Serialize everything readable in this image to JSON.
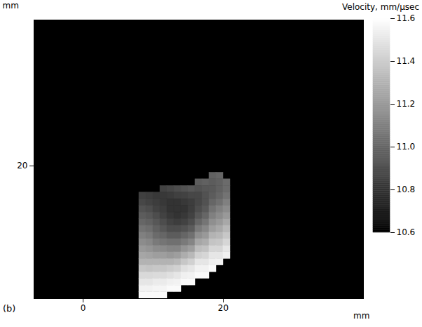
{
  "chart_data": {
    "type": "heatmap",
    "panel_label": "(b)",
    "xlabel": "mm",
    "ylabel": "mm",
    "xlim": [
      -7,
      40
    ],
    "xticks": [
      0,
      20
    ],
    "ylim": [
      40,
      -2
    ],
    "yticks": [
      20
    ],
    "x_edges": [
      8,
      9,
      10,
      11,
      12,
      13,
      14,
      15,
      16,
      17,
      18,
      19,
      20,
      21
    ],
    "y_edges": [
      21,
      22,
      23,
      24,
      25,
      26,
      27,
      28,
      29,
      30,
      31,
      32,
      33,
      34,
      35,
      36,
      37,
      38,
      39,
      40
    ],
    "values": [
      [
        null,
        null,
        null,
        null,
        null,
        null,
        null,
        null,
        null,
        null,
        10.98,
        11.0,
        null
      ],
      [
        null,
        null,
        null,
        null,
        null,
        null,
        null,
        null,
        10.96,
        10.98,
        10.96,
        10.98,
        11.02
      ],
      [
        null,
        null,
        null,
        10.86,
        10.88,
        10.9,
        10.92,
        10.94,
        10.92,
        10.94,
        10.95,
        10.98,
        11.02
      ],
      [
        10.85,
        10.84,
        10.82,
        10.82,
        10.83,
        10.85,
        10.86,
        10.88,
        10.88,
        10.92,
        10.96,
        11.0,
        11.05
      ],
      [
        10.88,
        10.86,
        10.84,
        10.82,
        10.8,
        10.8,
        10.82,
        10.84,
        10.88,
        10.92,
        11.0,
        11.04,
        11.1
      ],
      [
        10.92,
        10.9,
        10.86,
        10.84,
        10.8,
        10.8,
        10.8,
        10.84,
        10.9,
        10.95,
        11.05,
        11.1,
        11.15
      ],
      [
        10.96,
        10.94,
        10.9,
        10.86,
        10.82,
        10.8,
        10.82,
        10.86,
        10.94,
        11.0,
        11.1,
        11.15,
        11.2
      ],
      [
        11.0,
        10.98,
        10.94,
        10.9,
        10.86,
        10.84,
        10.86,
        10.9,
        11.0,
        11.06,
        11.16,
        11.2,
        11.26
      ],
      [
        11.05,
        11.03,
        10.98,
        10.94,
        10.9,
        10.9,
        10.92,
        10.96,
        11.08,
        11.13,
        11.22,
        11.26,
        11.32
      ],
      [
        11.1,
        11.08,
        11.02,
        11.0,
        10.96,
        10.96,
        11.0,
        11.04,
        11.16,
        11.2,
        11.3,
        11.32,
        11.38
      ],
      [
        11.15,
        11.13,
        11.08,
        11.06,
        11.04,
        11.04,
        11.08,
        11.12,
        11.25,
        11.28,
        11.37,
        11.38,
        11.44
      ],
      [
        11.2,
        11.18,
        11.15,
        11.14,
        11.12,
        11.12,
        11.18,
        11.22,
        11.34,
        11.36,
        11.44,
        11.44,
        11.5
      ],
      [
        11.25,
        11.24,
        11.22,
        11.22,
        11.2,
        11.22,
        11.28,
        11.32,
        11.42,
        11.44,
        11.5,
        11.5,
        11.54
      ],
      [
        11.3,
        11.3,
        11.3,
        11.3,
        11.3,
        11.32,
        11.38,
        11.42,
        11.5,
        11.5,
        11.54,
        11.55,
        null
      ],
      [
        11.38,
        11.37,
        11.38,
        11.38,
        11.4,
        11.42,
        11.48,
        11.5,
        11.55,
        11.55,
        11.58,
        null,
        null
      ],
      [
        11.45,
        11.45,
        11.46,
        11.46,
        11.48,
        11.5,
        11.54,
        11.55,
        11.58,
        11.58,
        null,
        null,
        null
      ],
      [
        11.5,
        11.5,
        11.52,
        11.52,
        11.54,
        11.55,
        11.58,
        11.58,
        null,
        null,
        null,
        null,
        null
      ],
      [
        11.55,
        11.55,
        11.56,
        11.56,
        11.58,
        11.58,
        null,
        null,
        null,
        null,
        null,
        null,
        null
      ],
      [
        11.58,
        11.58,
        11.58,
        11.58,
        null,
        null,
        null,
        null,
        null,
        null,
        null,
        null,
        null
      ]
    ],
    "colorbar_title": "Velocity, mm/µsec",
    "colorbar_range": [
      10.6,
      11.6
    ],
    "colorbar_ticks": [
      10.6,
      10.8,
      {
        "value": 11,
        "label": "11.0"
      },
      11.2,
      11.4,
      11.6
    ]
  }
}
